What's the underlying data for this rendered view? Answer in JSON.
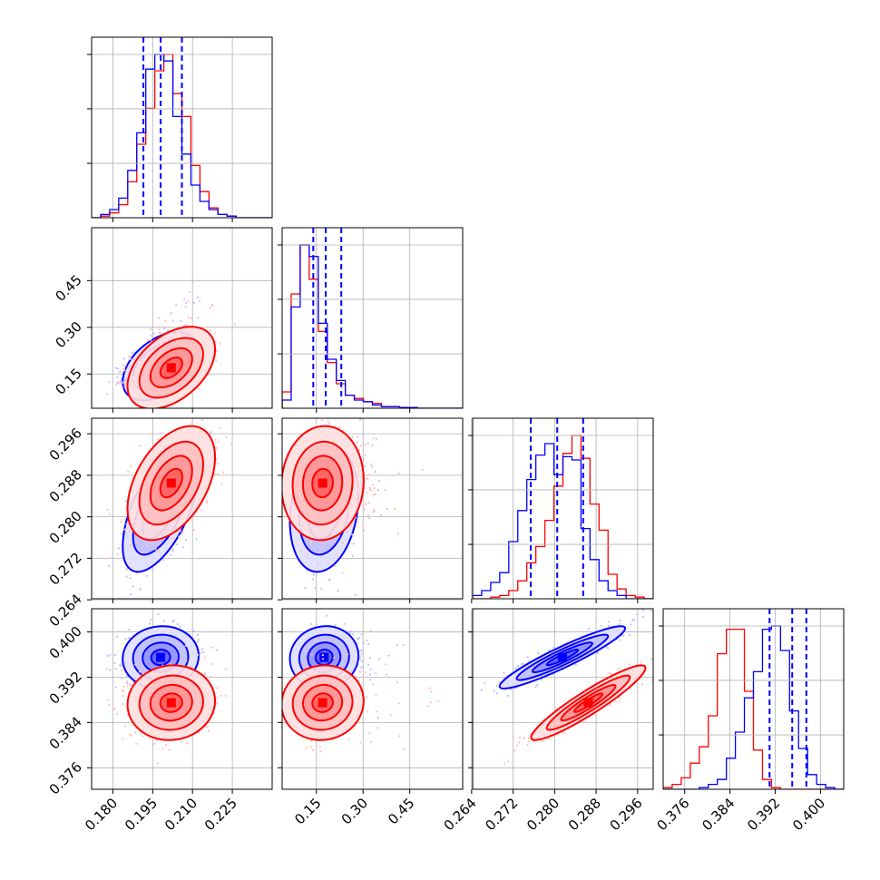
{
  "chart_data": {
    "type": "scatter",
    "plot_kind": "corner",
    "grid": true,
    "colors": {
      "blue": "#0000ff",
      "red": "#ff0000"
    },
    "parameters": [
      {
        "index": 0,
        "range": [
          0.172,
          0.24
        ],
        "ticks": [
          0.18,
          0.195,
          0.21,
          0.225
        ],
        "tick_labels": [
          "0.180",
          "0.195",
          "0.210",
          "0.225"
        ]
      },
      {
        "index": 1,
        "range": [
          0.04,
          0.62
        ],
        "ticks": [
          0.15,
          0.3,
          0.45
        ],
        "tick_labels": [
          "0.15",
          "0.30",
          "0.45"
        ]
      },
      {
        "index": 2,
        "range": [
          0.2642,
          0.299
        ],
        "ticks": [
          0.264,
          0.272,
          0.28,
          0.288,
          0.296
        ],
        "tick_labels": [
          "0.264",
          "0.272",
          "0.280",
          "0.288",
          "0.296"
        ]
      },
      {
        "index": 3,
        "range": [
          0.3722,
          0.4041
        ],
        "ticks": [
          0.376,
          0.384,
          0.392,
          0.4
        ],
        "tick_labels": [
          "0.376",
          "0.384",
          "0.392",
          "0.400"
        ]
      }
    ],
    "series": [
      {
        "color": "blue",
        "quantiles": [
          [
            0.1915,
            0.198,
            0.206
          ],
          [
            0.14,
            0.18,
            0.23
          ],
          [
            0.2754,
            0.2805,
            0.2855
          ],
          [
            0.391,
            0.395,
            0.3975
          ]
        ],
        "histograms": [
          {
            "edges": [
              0.172,
              0.24
            ],
            "counts": [
              0,
              0.02,
              0.05,
              0.12,
              0.29,
              0.52,
              0.91,
              1.0,
              0.96,
              0.62,
              0.39,
              0.2,
              0.1,
              0.05,
              0.02,
              0.01,
              0,
              0,
              0,
              0
            ]
          },
          {
            "edges": [
              0.04,
              0.62
            ],
            "counts": [
              0.05,
              0.62,
              1.0,
              0.93,
              0.52,
              0.3,
              0.17,
              0.08,
              0.05,
              0.04,
              0.02,
              0.01,
              0.01,
              0.005,
              0.005,
              0,
              0,
              0,
              0,
              0
            ]
          },
          {
            "edges": [
              0.2642,
              0.299
            ],
            "counts": [
              0.02,
              0.05,
              0.1,
              0.16,
              0.35,
              0.54,
              0.73,
              0.88,
              0.95,
              0.76,
              0.87,
              0.85,
              0.43,
              0.24,
              0.11,
              0.05,
              0.02,
              0,
              0,
              0
            ]
          },
          {
            "edges": [
              0.3722,
              0.4041
            ],
            "counts": [
              0,
              0,
              0,
              0,
              0.01,
              0.03,
              0.06,
              0.19,
              0.35,
              0.56,
              0.72,
              0.98,
              1.0,
              0.85,
              0.48,
              0.25,
              0.09,
              0.03,
              0.01,
              0
            ]
          }
        ],
        "means": [
          0.198,
          0.175,
          0.2815,
          0.3955
        ],
        "sds": [
          0.0065,
          0.05,
          0.0055,
          0.0025
        ],
        "correlations": {
          "1-0": 0.45,
          "2-0": 0.6,
          "2-1": 0.2,
          "3-0": 0.05,
          "3-1": 0.05,
          "3-2": 0.93
        }
      },
      {
        "color": "red",
        "quantiles": [
          null,
          null,
          null,
          null
        ],
        "histograms": [
          {
            "edges": [
              0.172,
              0.24
            ],
            "counts": [
              0,
              0.01,
              0.03,
              0.08,
              0.22,
              0.45,
              0.67,
              0.9,
              1.0,
              0.76,
              0.62,
              0.32,
              0.16,
              0.06,
              0.02,
              0.01,
              0,
              0,
              0,
              0
            ]
          },
          {
            "edges": [
              0.04,
              0.62
            ],
            "counts": [
              0.1,
              0.7,
              1.0,
              0.79,
              0.47,
              0.28,
              0.15,
              0.08,
              0.06,
              0.04,
              0.03,
              0.01,
              0.01,
              0.005,
              0.005,
              0,
              0,
              0,
              0,
              0
            ]
          },
          {
            "edges": [
              0.2642,
              0.299
            ],
            "counts": [
              0,
              0,
              0.01,
              0.02,
              0.05,
              0.11,
              0.22,
              0.32,
              0.48,
              0.69,
              0.89,
              1.0,
              0.86,
              0.58,
              0.42,
              0.15,
              0.06,
              0.02,
              0.01,
              0
            ]
          },
          {
            "edges": [
              0.3722,
              0.4041
            ],
            "counts": [
              0.01,
              0.03,
              0.07,
              0.16,
              0.26,
              0.45,
              0.83,
              0.98,
              0.98,
              0.6,
              0.24,
              0.06,
              0.01,
              0,
              0,
              0,
              0,
              0,
              0,
              0
            ]
          }
        ],
        "means": [
          0.202,
          0.17,
          0.2865,
          0.3875
        ],
        "sds": [
          0.0075,
          0.06,
          0.005,
          0.003
        ],
        "correlations": {
          "1-0": 0.45,
          "2-0": 0.45,
          "2-1": 0.05,
          "3-0": 0.05,
          "3-1": 0.05,
          "3-2": 0.93
        }
      }
    ]
  }
}
